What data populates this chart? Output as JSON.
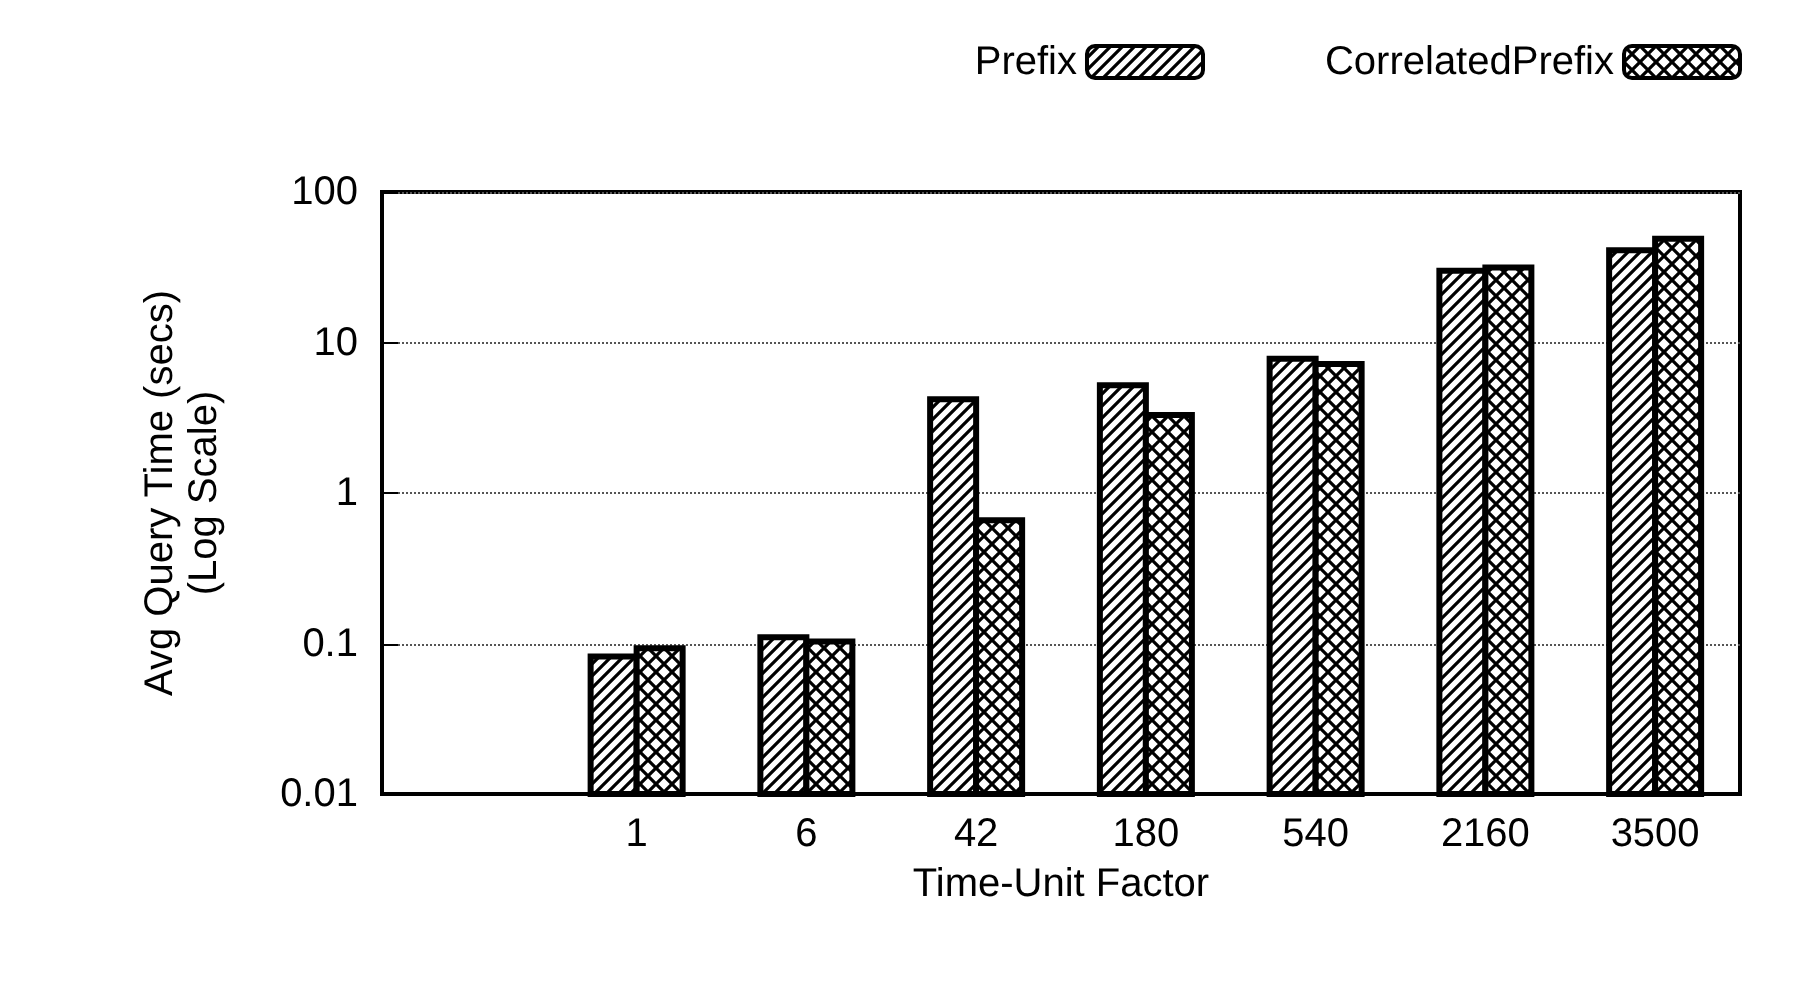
{
  "chart_data": {
    "type": "bar",
    "xlabel": "Time-Unit Factor",
    "ylabel": "Avg Query Time (secs)\n(Log Scale)",
    "categories": [
      null,
      "1",
      "6",
      "42",
      "180",
      "540",
      "2160",
      "3500"
    ],
    "series": [
      {
        "name": "Prefix",
        "color": "#000000",
        "values": [
          null,
          0.082,
          0.11,
          4.2,
          5.2,
          7.8,
          30,
          41
        ]
      },
      {
        "name": "CorrelatedPrefix",
        "color": "#000000",
        "values": [
          null,
          0.093,
          0.103,
          0.66,
          3.3,
          7.2,
          31.5,
          49
        ]
      }
    ],
    "log": true,
    "ylim": [
      0.01,
      100
    ],
    "yticks": [
      0.01,
      0.1,
      1,
      10,
      100
    ],
    "grid": "y",
    "legend": "top right"
  }
}
